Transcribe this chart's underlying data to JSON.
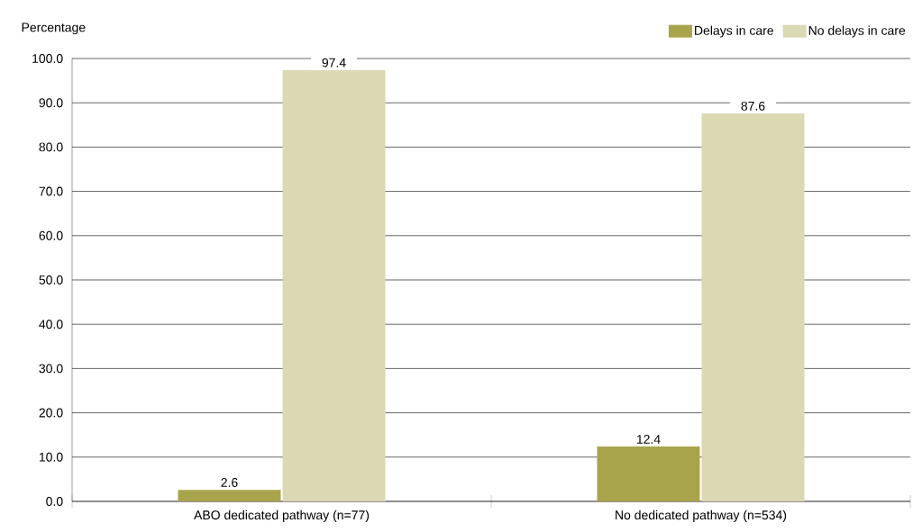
{
  "chart_data": {
    "type": "bar",
    "ylabel": "Percentage",
    "categories": [
      "ABO dedicated pathway (n=77)",
      "No dedicated pathway (n=534)"
    ],
    "series": [
      {
        "name": "Delays in care",
        "color": "#a8a44c",
        "values": [
          2.6,
          12.4
        ]
      },
      {
        "name": "No delays in care",
        "color": "#dbd8b4",
        "values": [
          97.4,
          87.6
        ]
      }
    ],
    "ylim": [
      0,
      100
    ],
    "yticks": [
      {
        "value": 0,
        "label": "0.0"
      },
      {
        "value": 10,
        "label": "10.0"
      },
      {
        "value": 20,
        "label": "20.0"
      },
      {
        "value": 30,
        "label": "30.0"
      },
      {
        "value": 40,
        "label": "40.0"
      },
      {
        "value": 50,
        "label": "50.0"
      },
      {
        "value": 60,
        "label": "60.0"
      },
      {
        "value": 70,
        "label": "70.0"
      },
      {
        "value": 80,
        "label": "80.0"
      },
      {
        "value": 90,
        "label": "90.0"
      },
      {
        "value": 100,
        "label": "100.0"
      }
    ],
    "grid": "y",
    "legend": "top right",
    "data_labels": true
  }
}
